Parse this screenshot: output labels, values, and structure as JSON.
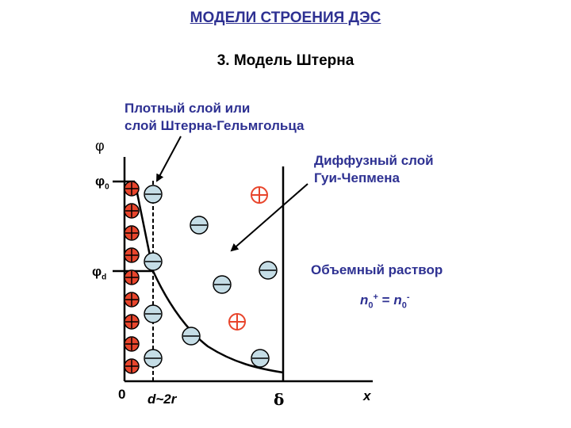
{
  "header": {
    "title": "МОДЕЛИ СТРОЕНИЯ ДЭС",
    "subtitle": "3. Модель Штерна"
  },
  "labels": {
    "dense_layer_line1": "Плотный слой или",
    "dense_layer_line2": "слой Штерна-Гельмгольца",
    "diffuse_layer_line1": "Диффузный слой",
    "diffuse_layer_line2": "Гуи-Чепмена",
    "bulk_solution": "Объемный раствор",
    "bulk_eq_n1": "n",
    "bulk_eq_sub1": "0",
    "bulk_eq_sup1": "+",
    "bulk_eq_mid": " = ",
    "bulk_eq_n2": "n",
    "bulk_eq_sub2": "0",
    "bulk_eq_sup2": "-"
  },
  "axis": {
    "y_label": "φ",
    "phi0": "φ",
    "phi0_sub": "0",
    "phid": "φ",
    "phid_sub": "d",
    "origin": "0",
    "d_label": "d~2r",
    "delta_label": "δ",
    "x_label": "x"
  },
  "colors": {
    "accent": "#2e3192",
    "positive_ion": "#e8452c",
    "negative_ion": "#c5dde6"
  }
}
